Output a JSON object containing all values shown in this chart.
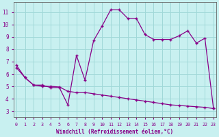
{
  "xlabel": "Windchill (Refroidissement éolien,°C)",
  "bg_color": "#c8f0f0",
  "grid_color": "#a0d8d8",
  "line_color": "#880088",
  "x_ticks": [
    0,
    1,
    2,
    3,
    4,
    5,
    6,
    7,
    8,
    9,
    10,
    11,
    12,
    13,
    14,
    15,
    16,
    17,
    18,
    19,
    20,
    21,
    22,
    23
  ],
  "y_ticks": [
    3,
    4,
    5,
    6,
    7,
    8,
    9,
    10,
    11
  ],
  "ylim": [
    2.5,
    11.8
  ],
  "xlim": [
    -0.3,
    23.3
  ],
  "line1_x": [
    0,
    1,
    2,
    3,
    4,
    5,
    6,
    7,
    8,
    9,
    10,
    11,
    12,
    13,
    14,
    15,
    16,
    17,
    18,
    19,
    20,
    21,
    22,
    23
  ],
  "line1_y": [
    6.7,
    5.7,
    5.1,
    5.1,
    4.9,
    4.9,
    3.5,
    7.5,
    5.5,
    8.7,
    9.9,
    11.2,
    11.2,
    10.5,
    10.5,
    9.2,
    8.8,
    8.8,
    8.8,
    9.1,
    9.5,
    8.5,
    8.9,
    3.2
  ],
  "line2_x": [
    0,
    1,
    2,
    3,
    4,
    5,
    6,
    7,
    8,
    9,
    10,
    11,
    12,
    13,
    14,
    15,
    16,
    17,
    18,
    19,
    20,
    21,
    22,
    23
  ],
  "line2_y": [
    6.5,
    5.7,
    5.1,
    5.0,
    5.0,
    4.95,
    4.6,
    4.5,
    4.5,
    4.4,
    4.3,
    4.2,
    4.1,
    4.0,
    3.9,
    3.8,
    3.7,
    3.6,
    3.5,
    3.45,
    3.4,
    3.35,
    3.3,
    3.2
  ]
}
